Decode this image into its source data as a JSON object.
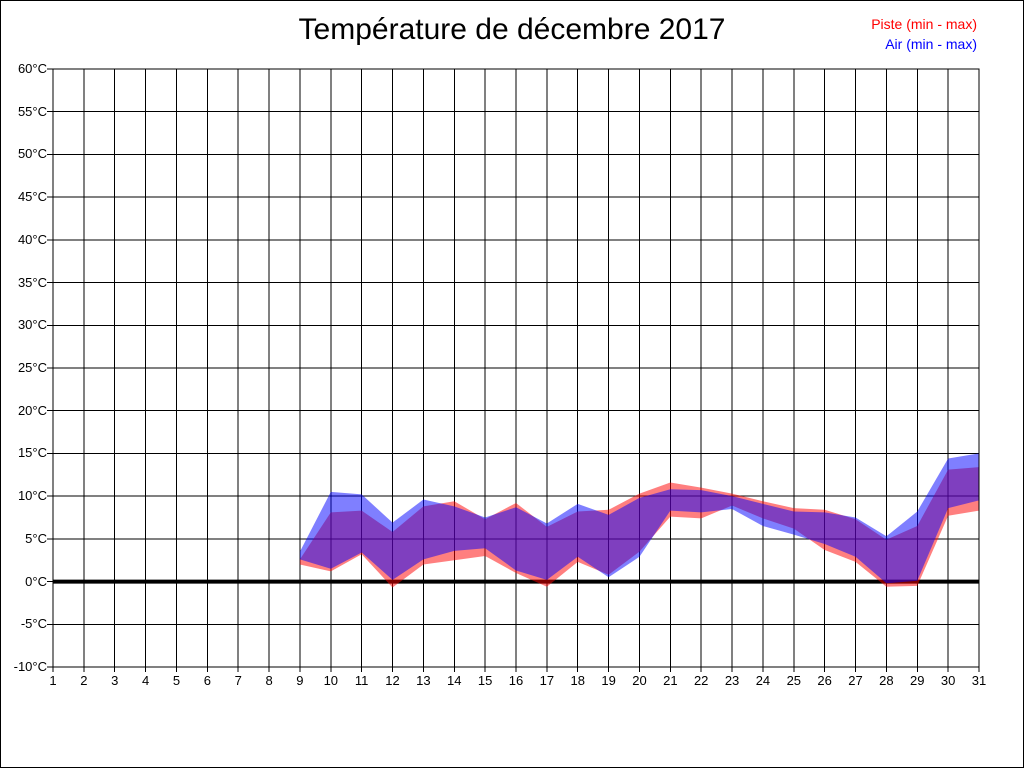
{
  "page": {
    "background": "#ffffff",
    "border_color": "#000000"
  },
  "title": "Température de décembre 2017",
  "legend": {
    "position": "top-right",
    "items": [
      {
        "label": "Piste (min - max)",
        "color": "#ff0000"
      },
      {
        "label": "Air (min - max)",
        "color": "#0000ff"
      }
    ]
  },
  "chart_data": {
    "type": "area",
    "subtype": "min-max-bands",
    "title": "Température de décembre 2017",
    "xlabel": "",
    "ylabel": "",
    "grid": {
      "on": true,
      "color": "#000000",
      "x_step": 1,
      "y_step": 5
    },
    "x_axis": {
      "range": [
        1,
        31
      ],
      "ticks": [
        1,
        2,
        3,
        4,
        5,
        6,
        7,
        8,
        9,
        10,
        11,
        12,
        13,
        14,
        15,
        16,
        17,
        18,
        19,
        20,
        21,
        22,
        23,
        24,
        25,
        26,
        27,
        28,
        29,
        30,
        31
      ]
    },
    "y_axis": {
      "range": [
        -10,
        60
      ],
      "ticks": [
        60,
        55,
        50,
        45,
        40,
        35,
        30,
        25,
        20,
        15,
        10,
        5,
        0,
        -5,
        -10
      ],
      "unit": "°C",
      "zero_line": {
        "value": 0,
        "stroke_width": 4,
        "color": "#000000"
      }
    },
    "x": [
      9,
      10,
      11,
      12,
      13,
      14,
      15,
      16,
      17,
      18,
      19,
      20,
      21,
      22,
      23,
      24,
      25,
      26,
      27,
      28,
      29,
      30,
      31
    ],
    "series": [
      {
        "name": "Piste (min - max)",
        "data_name": "piste-band",
        "color": "#ff0000",
        "fill_opacity": 0.5,
        "min": [
          2.0,
          1.2,
          3.2,
          -0.7,
          2.0,
          2.5,
          3.0,
          1.0,
          -0.6,
          2.3,
          0.8,
          3.5,
          7.6,
          7.4,
          8.9,
          7.4,
          6.2,
          3.7,
          2.3,
          -0.6,
          -0.5,
          7.7,
          8.3
        ],
        "max": [
          2.6,
          8.1,
          8.3,
          5.8,
          8.8,
          9.4,
          7.3,
          9.2,
          6.4,
          8.2,
          8.4,
          10.3,
          11.6,
          11.0,
          10.3,
          9.4,
          8.6,
          8.4,
          7.3,
          4.9,
          6.5,
          13.1,
          13.4
        ]
      },
      {
        "name": "Air (min - max)",
        "data_name": "air-band",
        "color": "#0000ff",
        "fill_opacity": 0.5,
        "min": [
          2.6,
          1.5,
          3.4,
          0.2,
          2.6,
          3.6,
          3.9,
          1.3,
          0.2,
          2.9,
          0.5,
          2.9,
          8.3,
          8.1,
          8.5,
          6.5,
          5.5,
          4.4,
          2.9,
          -0.2,
          0.1,
          8.6,
          9.5
        ],
        "max": [
          3.5,
          10.5,
          10.2,
          6.9,
          9.6,
          8.8,
          7.5,
          8.7,
          6.8,
          9.1,
          7.8,
          9.8,
          10.8,
          10.7,
          10.0,
          9.1,
          8.2,
          8.1,
          7.5,
          5.3,
          8.2,
          14.4,
          15.0
        ]
      }
    ]
  }
}
